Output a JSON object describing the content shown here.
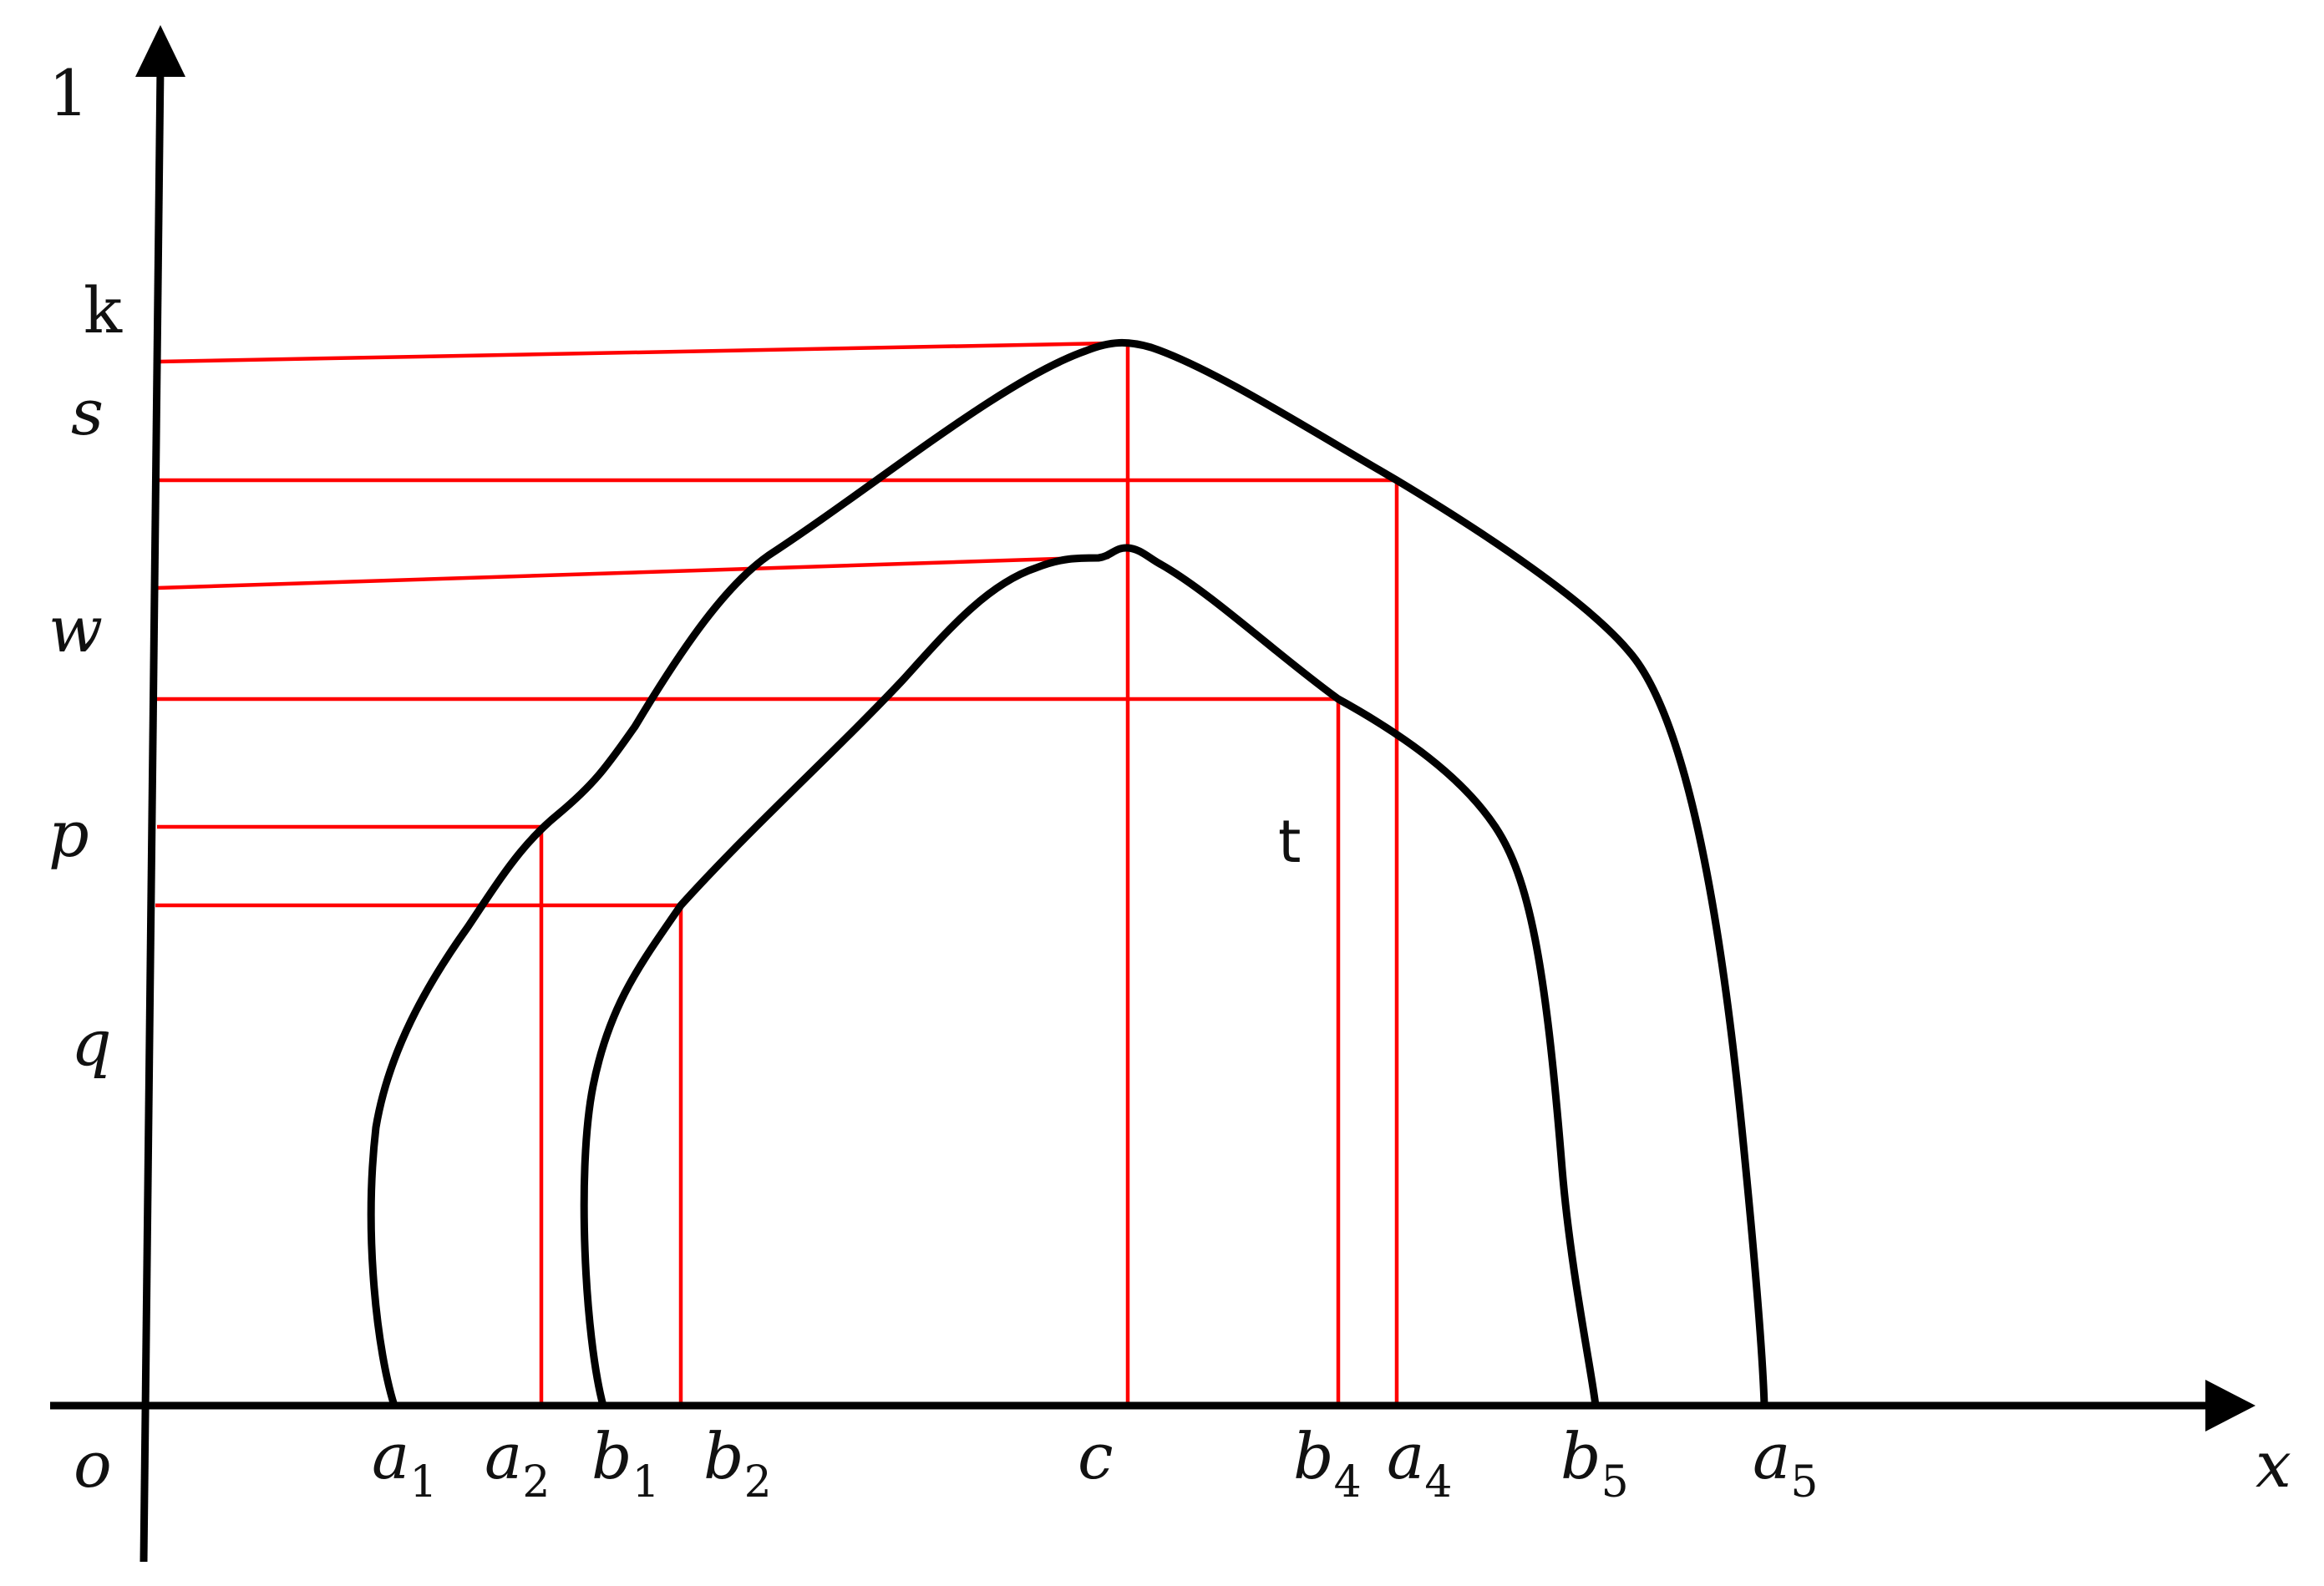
{
  "colors": {
    "axis": "#000000",
    "curve": "#000000",
    "guide": "#ff0000"
  },
  "axes": {
    "origin_label": "o",
    "x_label": "x",
    "y_top_label": "1"
  },
  "y_labels": {
    "k": "k",
    "s": "s",
    "w": "w",
    "p": "p",
    "q": "q"
  },
  "x_labels": {
    "a1": {
      "base": "a",
      "sub": "1"
    },
    "a2": {
      "base": "a",
      "sub": "2"
    },
    "b1": {
      "base": "b",
      "sub": "1"
    },
    "b2": {
      "base": "b",
      "sub": "2"
    },
    "c": {
      "base": "c",
      "sub": ""
    },
    "b4": {
      "base": "b",
      "sub": "4"
    },
    "a4": {
      "base": "a",
      "sub": "4"
    },
    "b5": {
      "base": "b",
      "sub": "5"
    },
    "a5": {
      "base": "a",
      "sub": "5"
    }
  },
  "annotations": {
    "t": "t"
  }
}
